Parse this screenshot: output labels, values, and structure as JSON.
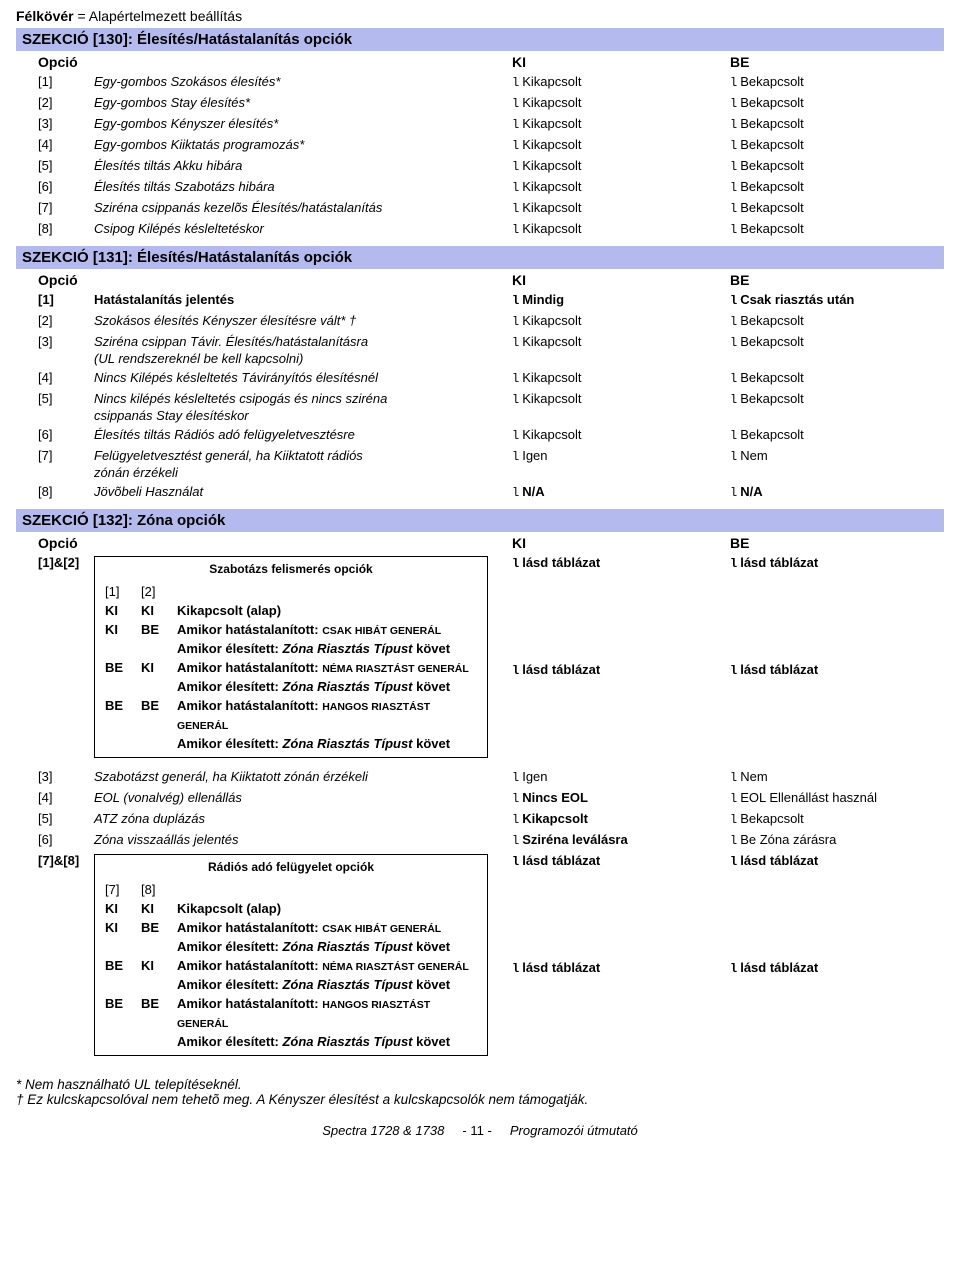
{
  "topNote": {
    "bold": "Félkövér",
    "rest": " = Alapértelmezett beállítás"
  },
  "s130": {
    "title": "SZEKCIÓ [130]: Élesítés/Hatástalanítás opciók",
    "header": {
      "c1": "Opció",
      "c2": "KI",
      "c3": "BE"
    },
    "rows": [
      {
        "n": "[1]",
        "d": "Egy-gombos Szokásos élesítés*",
        "ki": "Kikapcsolt",
        "be": "Bekapcsolt",
        "italic": true
      },
      {
        "n": "[2]",
        "d": "Egy-gombos Stay élesítés*",
        "ki": "Kikapcsolt",
        "be": "Bekapcsolt",
        "italic": true
      },
      {
        "n": "[3]",
        "d": "Egy-gombos Kényszer élesítés*",
        "ki": "Kikapcsolt",
        "be": "Bekapcsolt",
        "italic": true
      },
      {
        "n": "[4]",
        "d": "Egy-gombos Kiiktatás programozás*",
        "ki": "Kikapcsolt",
        "be": "Bekapcsolt",
        "italic": true
      },
      {
        "n": "[5]",
        "d": "Élesítés tiltás Akku hibára",
        "ki": "Kikapcsolt",
        "be": "Bekapcsolt",
        "italic": true
      },
      {
        "n": "[6]",
        "d": "Élesítés tiltás Szabotázs hibára",
        "ki": "Kikapcsolt",
        "be": "Bekapcsolt",
        "italic": true
      },
      {
        "n": "[7]",
        "d": "Sziréna csippanás kezelõs Élesítés/hatástalanítás",
        "ki": "Kikapcsolt",
        "be": "Bekapcsolt",
        "italic": true
      },
      {
        "n": "[8]",
        "d": "Csipog Kilépés késleltetéskor",
        "ki": "Kikapcsolt",
        "be": "Bekapcsolt",
        "italic": true
      }
    ]
  },
  "s131": {
    "title": "SZEKCIÓ [131]: Élesítés/Hatástalanítás opciók",
    "header": {
      "c1": "Opció",
      "c2": "KI",
      "c3": "BE"
    },
    "rows": [
      {
        "n": "[1]",
        "d": "Hatástalanítás jelentés",
        "ki": "Mindig",
        "be": "Csak riasztás után",
        "bold": true
      },
      {
        "n": "[2]",
        "d": "Szokásos élesítés Kényszer élesítésre vált* †",
        "ki": "Kikapcsolt",
        "be": "Bekapcsolt",
        "italic": true
      },
      {
        "n": "[3]",
        "d": "Sziréna csippan Távir. Élesítés/hatástalanításra",
        "d2": "(UL rendszereknél be kell kapcsolni)",
        "ki": "Kikapcsolt",
        "be": "Bekapcsolt",
        "italic": true
      },
      {
        "n": "[4]",
        "d": "Nincs Kilépés késleltetés Távirányítós élesítésnél",
        "ki": "Kikapcsolt",
        "be": "Bekapcsolt",
        "italic": true
      },
      {
        "n": "[5]",
        "d": "Nincs kilépés késleltetés csipogás és nincs sziréna",
        "d2": "csippanás Stay élesítéskor",
        "ki": "Kikapcsolt",
        "be": "Bekapcsolt",
        "italic": true
      },
      {
        "n": "[6]",
        "d": "Élesítés tiltás Rádiós adó felügyeletvesztésre",
        "ki": "Kikapcsolt",
        "be": "Bekapcsolt",
        "italic": true
      },
      {
        "n": "[7]",
        "d": "Felügyeletvesztést generál, ha Kiiktatott rádiós",
        "d2": "zónán érzékeli",
        "ki": "Igen",
        "be": "Nem",
        "italic": true
      },
      {
        "n": "[8]",
        "d": "Jövõbeli Használat",
        "ki": "N/A",
        "be": "N/A",
        "italic": true,
        "boldKB": true
      }
    ]
  },
  "s132": {
    "title": "SZEKCIÓ [132]: Zóna opciók",
    "header": {
      "c1": "Opció",
      "c2": "KI",
      "c3": "BE"
    },
    "r12": {
      "n": "[1]&[2]",
      "ki": "lásd táblázat",
      "be": "lásd táblázat"
    },
    "sub1": {
      "title": "Szabotázs felismerés opciók",
      "h1": "[1]",
      "h2": "[2]",
      "rows": [
        {
          "a": "KI",
          "b": "KI",
          "t": "Kikapcsolt (alap)",
          "bold": true
        },
        {
          "a": "KI",
          "b": "BE",
          "t1": "Amikor hatástalanított: ",
          "t1sc": "CSAK HIBÁT GENERÁL",
          "t2": "Amikor élesített: ",
          "t2i": "Zóna Riasztás Típust",
          "t2e": " követ"
        },
        {
          "a": "BE",
          "b": "KI",
          "t1": "Amikor hatástalanított: ",
          "t1sc": "NÉMA RIASZTÁST GENERÁL",
          "t2": "Amikor élesített: ",
          "t2i": "Zóna Riasztás Típust",
          "t2e": " követ"
        },
        {
          "a": "BE",
          "b": "BE",
          "t1": "Amikor hatástalanított: ",
          "t1sc": "HANGOS RIASZTÁST GENERÁL",
          "t2": "Amikor élesített: ",
          "t2i": "Zóna Riasztás Típust",
          "t2e": " követ"
        }
      ]
    },
    "rows2": [
      {
        "n": "[3]",
        "d": "Szabotázst generál, ha Kiiktatott zónán érzékeli",
        "ki": "Igen",
        "be": "Nem",
        "italic": true
      },
      {
        "n": "[4]",
        "d": "EOL (vonalvég) ellenállás",
        "ki": "Nincs EOL",
        "be": "EOL Ellenállást használ",
        "italic": true,
        "kiBold": true
      },
      {
        "n": "[5]",
        "d": "ATZ zóna duplázás",
        "ki": "Kikapcsolt",
        "be": "Bekapcsolt",
        "italic": true,
        "kiBold": true
      },
      {
        "n": "[6]",
        "d": "Zóna visszaállás jelentés",
        "ki": "Sziréna leválásra",
        "be": "Be Zóna zárásra",
        "italic": true,
        "kiBold": true
      }
    ],
    "r78": {
      "n": "[7]&[8]",
      "ki": "lásd táblázat",
      "be": "lásd táblázat"
    },
    "sub2": {
      "title": "Rádiós adó felügyelet opciók",
      "h1": "[7]",
      "h2": "[8]",
      "rows": [
        {
          "a": "KI",
          "b": "KI",
          "t": "Kikapcsolt (alap)",
          "bold": true
        },
        {
          "a": "KI",
          "b": "BE",
          "t1": "Amikor hatástalanított: ",
          "t1sc": "CSAK HIBÁT GENERÁL",
          "t2": "Amikor élesített: ",
          "t2i": "Zóna Riasztás Típust",
          "t2e": " követ"
        },
        {
          "a": "BE",
          "b": "KI",
          "t1": "Amikor hatástalanított: ",
          "t1sc": "NÉMA RIASZTÁST GENERÁL",
          "t2": "Amikor élesített: ",
          "t2i": "Zóna Riasztás Típust",
          "t2e": " követ"
        },
        {
          "a": "BE",
          "b": "BE",
          "t1": "Amikor hatástalanított: ",
          "t1sc": "HANGOS RIASZTÁST GENERÁL",
          "t2": "Amikor élesített: ",
          "t2i": "Zóna Riasztás Típust",
          "t2e": " követ"
        }
      ]
    }
  },
  "footnotes": {
    "a": "* Nem használható UL telepítéseknél.",
    "b": "† Ez kulcskapcsolóval nem tehetõ meg. A Kényszer élesítést a kulcskapcsolók nem támogatják."
  },
  "footer": {
    "left": "Spectra 1728 & 1738",
    "mid": "- 11 -",
    "right": "Programozói útmutató"
  }
}
